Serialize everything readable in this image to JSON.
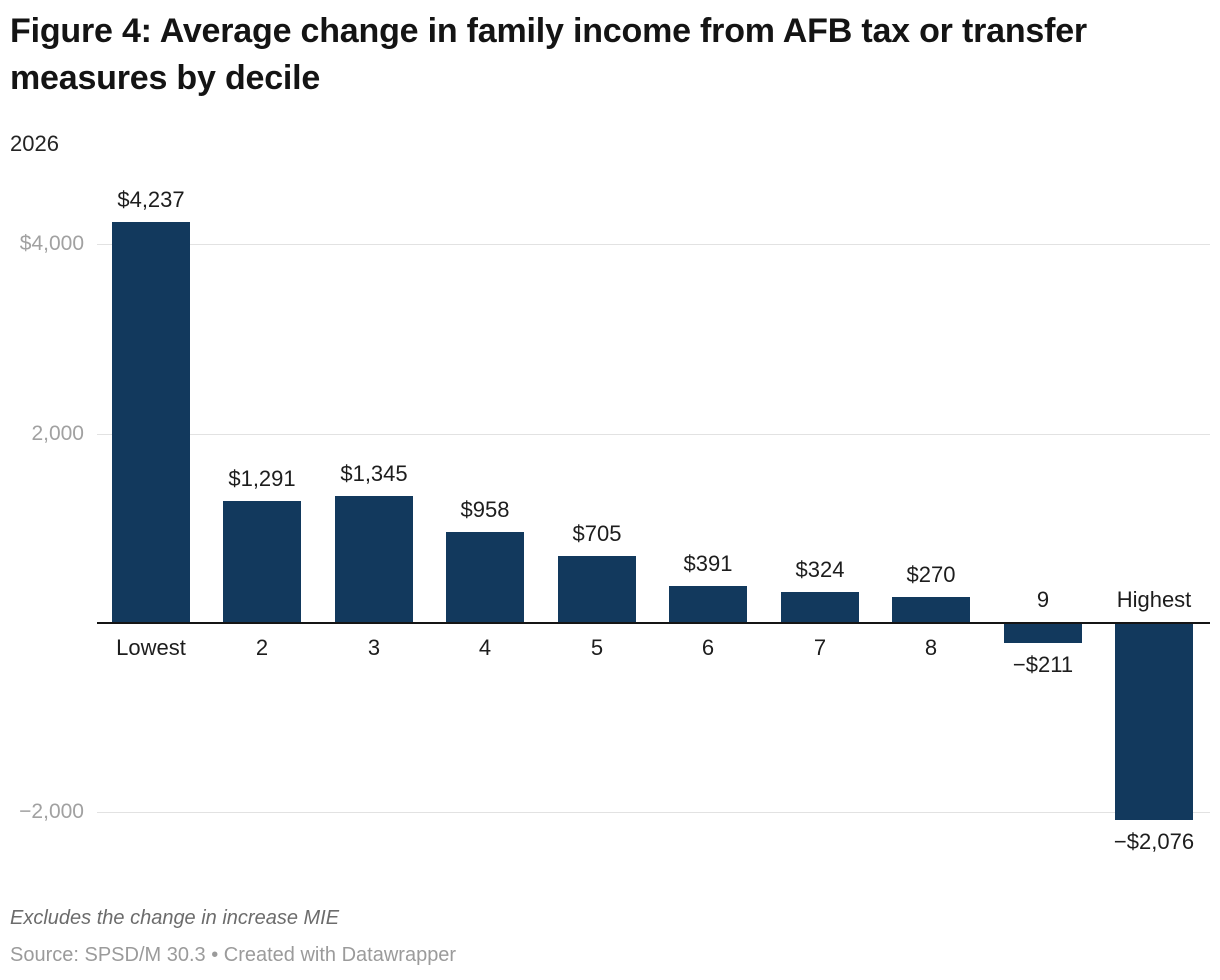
{
  "header": {
    "title": "Figure 4: Average change in family income from AFB tax or transfer measures by decile",
    "subtitle": "2026"
  },
  "chart_data": {
    "type": "bar",
    "title": "Figure 4: Average change in family income from AFB tax or transfer measures by decile",
    "subtitle": "2026",
    "categories": [
      "Lowest",
      "2",
      "3",
      "4",
      "5",
      "6",
      "7",
      "8",
      "9",
      "Highest"
    ],
    "values": [
      4237,
      1291,
      1345,
      958,
      705,
      391,
      324,
      270,
      -211,
      -2076
    ],
    "value_labels": [
      "$4,237",
      "$1,291",
      "$1,345",
      "$958",
      "$705",
      "$391",
      "$324",
      "$270",
      "−$211",
      "−$2,076"
    ],
    "xlabel": "",
    "ylabel": "",
    "ylim": [
      -2500,
      4500
    ],
    "y_ticks": [
      {
        "value": 4000,
        "label": "$4,000"
      },
      {
        "value": 2000,
        "label": "2,000"
      },
      {
        "value": -2000,
        "label": "−2,000"
      }
    ],
    "grid": "horizontal",
    "legend": "none",
    "colors": {
      "bar": "#12395d",
      "grid": "#e2e2e2",
      "zero_axis": "#151515",
      "tick_label": "#a1a1a1",
      "data_label": "#1d1d1d",
      "category_label": "#1d1d1d"
    }
  },
  "footer": {
    "note": "Excludes the change in increase MIE",
    "source": "Source: SPSD/M 30.3 • Created with Datawrapper"
  }
}
